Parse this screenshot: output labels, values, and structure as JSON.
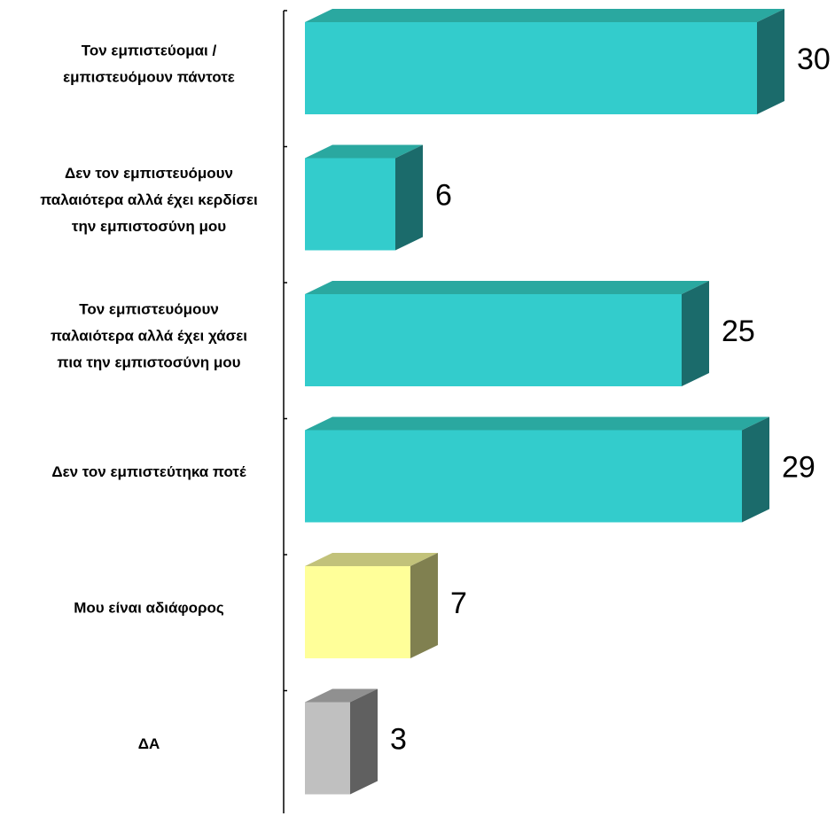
{
  "chart_data": {
    "type": "bar",
    "orientation": "horizontal",
    "style": "3d",
    "title": "",
    "xlabel": "",
    "ylabel": "",
    "xlim": [
      0,
      30
    ],
    "grid": false,
    "legend": "none",
    "categories": [
      [
        "Τον εμπιστεύομαι /",
        "εμπιστευόμουν πάντοτε"
      ],
      [
        "Δεν τον εμπιστευόμουν",
        "παλαιότερα αλλά έχει κερδίσει",
        "την εμπιστοσύνη μου"
      ],
      [
        "Τον εμπιστευόμουν",
        "παλαιότερα αλλά έχει χάσει",
        "πια την εμπιστοσύνη μου"
      ],
      [
        "Δεν τον εμπιστεύτηκα ποτέ"
      ],
      [
        "Μου είναι αδιάφορος"
      ],
      [
        "ΔΑ"
      ]
    ],
    "values": [
      30,
      6,
      25,
      29,
      7,
      3
    ],
    "value_labels": [
      "30",
      "6",
      "25",
      "29",
      "7",
      "3"
    ],
    "bar_colors": [
      {
        "front": "#33cccc",
        "top": "#2aa8a0",
        "side": "#1b6b6b"
      },
      {
        "front": "#33cccc",
        "top": "#2aa8a0",
        "side": "#1b6b6b"
      },
      {
        "front": "#33cccc",
        "top": "#2aa8a0",
        "side": "#1b6b6b"
      },
      {
        "front": "#33cccc",
        "top": "#2aa8a0",
        "side": "#1b6b6b"
      },
      {
        "front": "#ffff99",
        "top": "#c2c27a",
        "side": "#808050"
      },
      {
        "front": "#c0c0c0",
        "top": "#909090",
        "side": "#606060"
      }
    ]
  }
}
